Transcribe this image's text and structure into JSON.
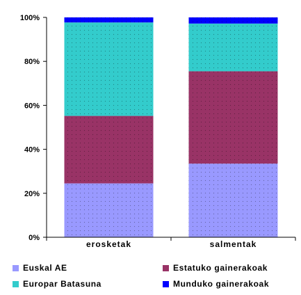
{
  "chart_data": {
    "type": "bar",
    "stacked": true,
    "normalized": true,
    "categories": [
      "erosketak",
      "salmentak"
    ],
    "series": [
      {
        "name": "Euskal AE",
        "values": [
          24.5,
          33.5
        ],
        "color": "#9999ff"
      },
      {
        "name": "Estatuko gainerakoak",
        "values": [
          30.7,
          42.0
        ],
        "color": "#993366"
      },
      {
        "name": "Europar Batasuna",
        "values": [
          42.5,
          21.7
        ],
        "color": "#33cccc"
      },
      {
        "name": "Munduko gainerakoak",
        "values": [
          2.3,
          2.8
        ],
        "color": "#0000ff"
      }
    ],
    "yticks": [
      "0%",
      "20%",
      "40%",
      "60%",
      "80%",
      "100%"
    ],
    "ylim": [
      0,
      100
    ],
    "grid": false,
    "legend_position": "bottom"
  }
}
